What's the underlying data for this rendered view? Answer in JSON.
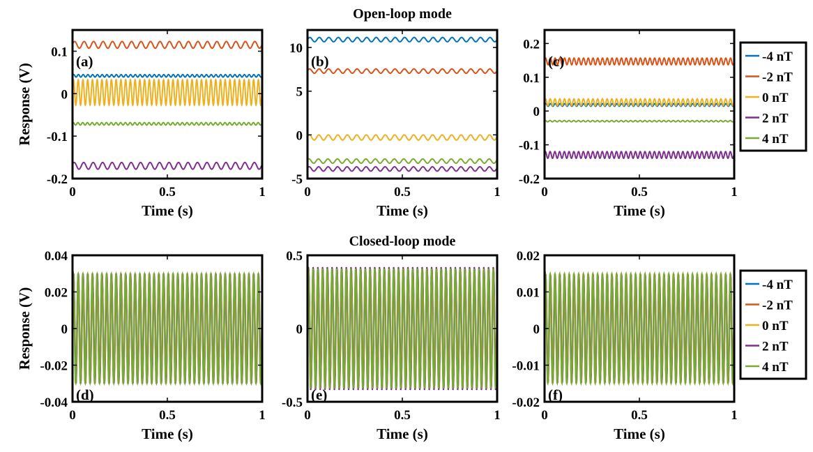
{
  "figure": {
    "row_titles": [
      "Open-loop mode",
      "Closed-loop mode"
    ],
    "series_colors": [
      "#0072BD",
      "#D95319",
      "#EDB120",
      "#7E2F8E",
      "#77AC30"
    ]
  },
  "chart_data": [
    {
      "type": "line",
      "panel_label": "(a)",
      "title": "",
      "xlabel": "Time (s)",
      "ylabel": "Response (V)",
      "xlim": [
        0,
        1
      ],
      "ylim": [
        -0.2,
        0.15
      ],
      "xticks": [
        0,
        0.5,
        1
      ],
      "xtick_labels": [
        "0",
        "0.5",
        "1"
      ],
      "yticks": [
        -0.2,
        -0.1,
        0,
        0.1
      ],
      "ytick_labels": [
        "-0.2",
        "-0.1",
        "0",
        "0.1"
      ],
      "grid": false,
      "series": [
        {
          "name": "-4 nT",
          "color": "#0072BD",
          "offset": 0.042,
          "amplitude": 0.003,
          "cycles": 40
        },
        {
          "name": "-2 nT",
          "color": "#D95319",
          "offset": 0.115,
          "amplitude": 0.008,
          "cycles": 20
        },
        {
          "name": "0 nT",
          "color": "#EDB120",
          "offset": 0.003,
          "amplitude": 0.03,
          "cycles": 40
        },
        {
          "name": "2 nT",
          "color": "#7E2F8E",
          "offset": -0.17,
          "amplitude": 0.008,
          "cycles": 20
        },
        {
          "name": "4 nT",
          "color": "#77AC30",
          "offset": -0.071,
          "amplitude": 0.003,
          "cycles": 40
        }
      ]
    },
    {
      "type": "line",
      "panel_label": "(b)",
      "title": "",
      "xlabel": "Time (s)",
      "ylabel": "",
      "xlim": [
        0,
        1
      ],
      "ylim": [
        -5,
        12
      ],
      "xticks": [
        0,
        0.5,
        1
      ],
      "xtick_labels": [
        "0",
        "0.5",
        "1"
      ],
      "yticks": [
        -5,
        0,
        5,
        10
      ],
      "ytick_labels": [
        "-5",
        "0",
        "5",
        "10"
      ],
      "grid": false,
      "series": [
        {
          "name": "-4 nT",
          "color": "#0072BD",
          "offset": 10.9,
          "amplitude": 0.25,
          "cycles": 20
        },
        {
          "name": "-2 nT",
          "color": "#D95319",
          "offset": 7.3,
          "amplitude": 0.25,
          "cycles": 20
        },
        {
          "name": "0 nT",
          "color": "#EDB120",
          "offset": -0.3,
          "amplitude": 0.3,
          "cycles": 20
        },
        {
          "name": "2 nT",
          "color": "#7E2F8E",
          "offset": -3.9,
          "amplitude": 0.25,
          "cycles": 20
        },
        {
          "name": "4 nT",
          "color": "#77AC30",
          "offset": -3.0,
          "amplitude": 0.25,
          "cycles": 20
        }
      ]
    },
    {
      "type": "line",
      "panel_label": "(c)",
      "title": "",
      "xlabel": "Time (s)",
      "ylabel": "",
      "xlim": [
        0,
        1
      ],
      "ylim": [
        -0.2,
        0.24
      ],
      "xticks": [
        0,
        0.5,
        1
      ],
      "xtick_labels": [
        "0",
        "0.5",
        "1"
      ],
      "yticks": [
        -0.2,
        -0.1,
        0,
        0.1,
        0.2
      ],
      "ytick_labels": [
        "-0.2",
        "-0.1",
        "0",
        "0.1",
        "0.2"
      ],
      "grid": false,
      "series": [
        {
          "name": "-4 nT",
          "color": "#0072BD",
          "offset": 0.018,
          "amplitude": 0.004,
          "cycles": 40
        },
        {
          "name": "-2 nT",
          "color": "#D95319",
          "offset": 0.147,
          "amplitude": 0.01,
          "cycles": 40
        },
        {
          "name": "0 nT",
          "color": "#EDB120",
          "offset": 0.026,
          "amplitude": 0.01,
          "cycles": 40
        },
        {
          "name": "2 nT",
          "color": "#7E2F8E",
          "offset": -0.13,
          "amplitude": 0.01,
          "cycles": 40
        },
        {
          "name": "4 nT",
          "color": "#77AC30",
          "offset": -0.03,
          "amplitude": 0.002,
          "cycles": 40
        }
      ]
    },
    {
      "type": "line",
      "panel_label": "(d)",
      "title": "",
      "xlabel": "Time (s)",
      "ylabel": "Response (V)",
      "xlim": [
        0,
        1
      ],
      "ylim": [
        -0.04,
        0.04
      ],
      "xticks": [
        0,
        0.5,
        1
      ],
      "xtick_labels": [
        "0",
        "0.5",
        "1"
      ],
      "yticks": [
        -0.04,
        -0.02,
        0,
        0.02,
        0.04
      ],
      "ytick_labels": [
        "-0.04",
        "-0.02",
        "0",
        "0.02",
        "0.04"
      ],
      "grid": false,
      "series": [
        {
          "name": "-4 nT",
          "color": "#0072BD",
          "offset": 0,
          "amplitude": 0.0298,
          "cycles": 40
        },
        {
          "name": "-2 nT",
          "color": "#D95319",
          "offset": 0,
          "amplitude": 0.0299,
          "cycles": 40
        },
        {
          "name": "0 nT",
          "color": "#EDB120",
          "offset": 0,
          "amplitude": 0.03,
          "cycles": 40
        },
        {
          "name": "2 nT",
          "color": "#7E2F8E",
          "offset": 0,
          "amplitude": 0.0301,
          "cycles": 40
        },
        {
          "name": "4 nT",
          "color": "#77AC30",
          "offset": 0,
          "amplitude": 0.03,
          "cycles": 40
        }
      ]
    },
    {
      "type": "line",
      "panel_label": "(e)",
      "title": "",
      "xlabel": "Time (s)",
      "ylabel": "",
      "xlim": [
        0,
        1
      ],
      "ylim": [
        -0.5,
        0.5
      ],
      "xticks": [
        0,
        0.5,
        1
      ],
      "xtick_labels": [
        "0",
        "0.5",
        "1"
      ],
      "yticks": [
        -0.5,
        0,
        0.5
      ],
      "ytick_labels": [
        "-0.5",
        "0",
        "0.5"
      ],
      "grid": false,
      "series": [
        {
          "name": "-4 nT",
          "color": "#0072BD",
          "offset": 0,
          "amplitude": 0.405,
          "cycles": 40
        },
        {
          "name": "-2 nT",
          "color": "#D95319",
          "offset": 0,
          "amplitude": 0.41,
          "cycles": 40
        },
        {
          "name": "0 nT",
          "color": "#EDB120",
          "offset": 0,
          "amplitude": 0.41,
          "cycles": 40
        },
        {
          "name": "2 nT",
          "color": "#7E2F8E",
          "offset": 0,
          "amplitude": 0.42,
          "cycles": 40
        },
        {
          "name": "4 nT",
          "color": "#77AC30",
          "offset": 0,
          "amplitude": 0.41,
          "cycles": 40
        }
      ]
    },
    {
      "type": "line",
      "panel_label": "(f)",
      "title": "",
      "xlabel": "Time (s)",
      "ylabel": "",
      "xlim": [
        0,
        1
      ],
      "ylim": [
        -0.02,
        0.02
      ],
      "xticks": [
        0,
        0.5,
        1
      ],
      "xtick_labels": [
        "0",
        "0.5",
        "1"
      ],
      "yticks": [
        -0.02,
        -0.01,
        0,
        0.01,
        0.02
      ],
      "ytick_labels": [
        "-0.02",
        "-0.01",
        "0",
        "0.01",
        "0.02"
      ],
      "grid": false,
      "series": [
        {
          "name": "-4 nT",
          "color": "#0072BD",
          "offset": 0,
          "amplitude": 0.0148,
          "cycles": 40
        },
        {
          "name": "-2 nT",
          "color": "#D95319",
          "offset": 0,
          "amplitude": 0.0149,
          "cycles": 40
        },
        {
          "name": "0 nT",
          "color": "#EDB120",
          "offset": 0,
          "amplitude": 0.015,
          "cycles": 40
        },
        {
          "name": "2 nT",
          "color": "#7E2F8E",
          "offset": 0,
          "amplitude": 0.0148,
          "cycles": 40
        },
        {
          "name": "4 nT",
          "color": "#77AC30",
          "offset": 0,
          "amplitude": 0.015,
          "cycles": 40
        }
      ]
    }
  ],
  "legends": [
    {
      "placement": "right of panel (c)",
      "entries": [
        "-4 nT",
        "-2 nT",
        "0 nT",
        "2 nT",
        "4 nT"
      ]
    },
    {
      "placement": "right of panel (f)",
      "entries": [
        "-4 nT",
        "-2 nT",
        "0 nT",
        "2 nT",
        "4 nT"
      ]
    }
  ]
}
